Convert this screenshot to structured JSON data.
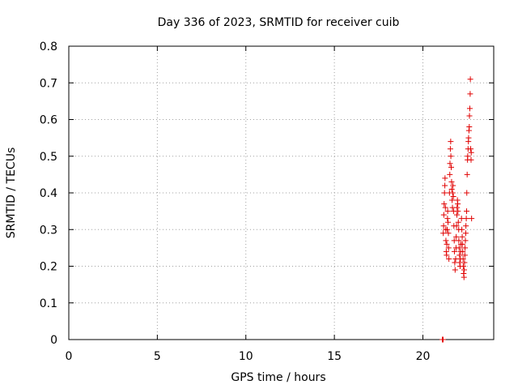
{
  "chart_data": {
    "type": "scatter",
    "title": "Day 336 of 2023, SRMTID for receiver cuib",
    "xlabel": "GPS time / hours",
    "ylabel": "SRMTID / TECUs",
    "xlim": [
      0,
      24
    ],
    "ylim": [
      0,
      0.8
    ],
    "xticks": [
      0,
      5,
      10,
      15,
      20
    ],
    "yticks": [
      0,
      0.1,
      0.2,
      0.3,
      0.4,
      0.5,
      0.6,
      0.7,
      0.8
    ],
    "grid": true,
    "marker": "+",
    "color": "#e00000",
    "series": [
      {
        "name": "SRMTID",
        "x": [
          21.1,
          21.12,
          21.14,
          21.15,
          21.17,
          21.18,
          21.2,
          21.22,
          21.24,
          21.25,
          21.27,
          21.29,
          21.3,
          21.32,
          21.34,
          21.35,
          21.37,
          21.39,
          21.4,
          21.42,
          21.44,
          21.45,
          21.47,
          21.5,
          21.52,
          21.53,
          21.55,
          21.57,
          21.58,
          21.6,
          21.62,
          21.63,
          21.65,
          21.67,
          21.68,
          21.7,
          21.72,
          21.73,
          21.75,
          21.77,
          21.78,
          21.8,
          21.82,
          21.85,
          21.87,
          21.88,
          21.9,
          21.92,
          21.93,
          21.95,
          21.97,
          21.98,
          22.0,
          22.02,
          22.03,
          22.05,
          22.07,
          22.08,
          22.1,
          22.12,
          22.13,
          22.15,
          22.18,
          22.2,
          22.22,
          22.23,
          22.25,
          22.27,
          22.28,
          22.3,
          22.32,
          22.33,
          22.35,
          22.37,
          22.38,
          22.4,
          22.42,
          22.43,
          22.45,
          22.47,
          22.48,
          22.5,
          22.52,
          22.53,
          22.55,
          22.57,
          22.58,
          22.6,
          22.62,
          22.63,
          22.65,
          22.67,
          22.68,
          22.7,
          22.72,
          22.73,
          22.75
        ],
        "y": [
          0.0,
          0.0,
          0.0,
          0.29,
          0.31,
          0.34,
          0.37,
          0.4,
          0.42,
          0.44,
          0.36,
          0.3,
          0.27,
          0.24,
          0.23,
          0.26,
          0.3,
          0.33,
          0.35,
          0.32,
          0.29,
          0.25,
          0.22,
          0.4,
          0.45,
          0.48,
          0.52,
          0.54,
          0.5,
          0.47,
          0.43,
          0.41,
          0.38,
          0.36,
          0.4,
          0.42,
          0.39,
          0.35,
          0.31,
          0.27,
          0.24,
          0.21,
          0.19,
          0.22,
          0.25,
          0.28,
          0.31,
          0.34,
          0.36,
          0.38,
          0.37,
          0.35,
          0.32,
          0.3,
          0.27,
          0.25,
          0.23,
          0.21,
          0.2,
          0.22,
          0.24,
          0.26,
          0.33,
          0.3,
          0.28,
          0.26,
          0.24,
          0.22,
          0.2,
          0.18,
          0.17,
          0.19,
          0.21,
          0.23,
          0.25,
          0.27,
          0.29,
          0.31,
          0.33,
          0.35,
          0.4,
          0.45,
          0.49,
          0.5,
          0.52,
          0.54,
          0.55,
          0.57,
          0.58,
          0.61,
          0.63,
          0.67,
          0.71,
          0.52,
          0.49,
          0.51,
          0.33
        ]
      }
    ]
  }
}
